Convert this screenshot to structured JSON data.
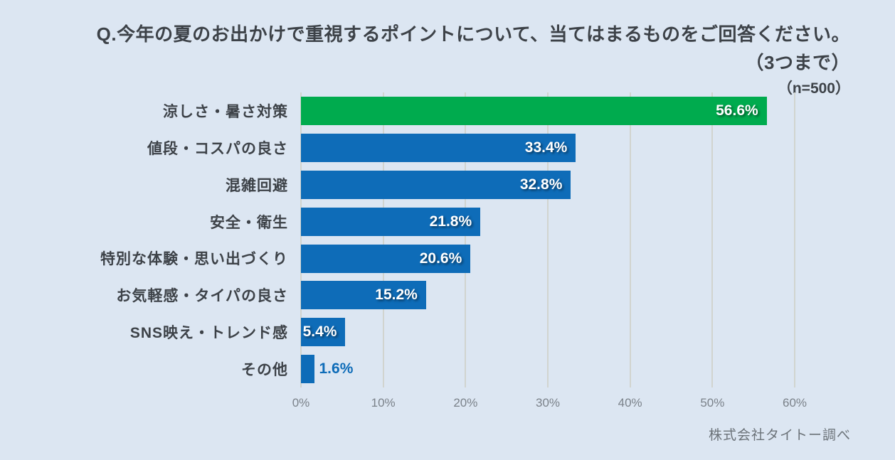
{
  "title": {
    "question": "Q.今年の夏のお出かけで重視するポイントについて、当てはまるものをご回答ください。",
    "limit_note": "（3つまで）",
    "sample_size_note": "（n=500）"
  },
  "source_note": "株式会社タイトー調べ",
  "colors": {
    "background": "#dce6f2",
    "bar_default": "#0e6cb8",
    "bar_highlight": "#00ab4e",
    "gridline": "#d1d4cf",
    "title_text": "#3d4248",
    "category_text": "#3d4248",
    "axis_text": "#7b828a",
    "source_text": "#6b7278",
    "value_inside_text": "#ffffff",
    "value_outside_text": "#0e6cb8"
  },
  "chart_data": {
    "type": "bar",
    "orientation": "horizontal",
    "title": "Q.今年の夏のお出かけで重視するポイントについて、当てはまるものをご回答ください。（3つまで）",
    "sample_size": 500,
    "categories": [
      "涼しさ・暑さ対策",
      "値段・コスパの良さ",
      "混雑回避",
      "安全・衛生",
      "特別な体験・思い出づくり",
      "お気軽感・タイパの良さ",
      "SNS映え・トレンド感",
      "その他"
    ],
    "values": [
      56.6,
      33.4,
      32.8,
      21.8,
      20.6,
      15.2,
      5.4,
      1.6
    ],
    "labels": [
      "56.6%",
      "33.4%",
      "32.8%",
      "21.8%",
      "20.6%",
      "15.2%",
      "5.4%",
      "1.6%"
    ],
    "bar_colors": [
      "#00ab4e",
      "#0e6cb8",
      "#0e6cb8",
      "#0e6cb8",
      "#0e6cb8",
      "#0e6cb8",
      "#0e6cb8",
      "#0e6cb8"
    ],
    "xlabel": "",
    "ylabel": "",
    "xlim": [
      0,
      60
    ],
    "x_ticks": [
      "0%",
      "10%",
      "20%",
      "30%",
      "40%",
      "50%",
      "60%"
    ],
    "grid": true,
    "legend": false
  }
}
